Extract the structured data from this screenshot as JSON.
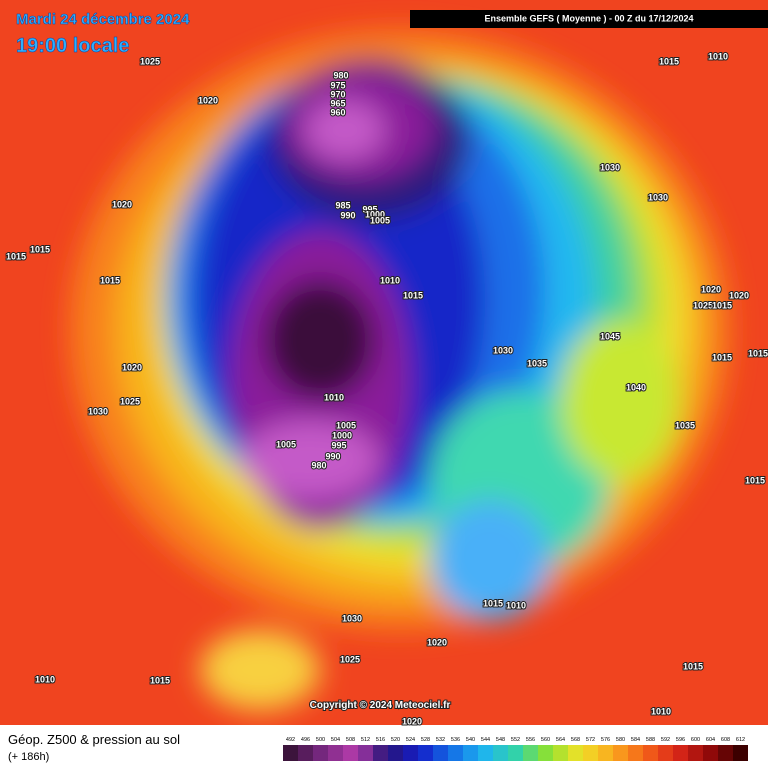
{
  "header": {
    "date": "Mardi 24 décembre 2024",
    "time": "19:00 locale",
    "run": "Ensemble GEFS  ( Moyenne )  -  00 Z du 17/12/2024"
  },
  "isobar_labels": [
    1025,
    1020,
    980,
    975,
    970,
    965,
    960,
    1015,
    1010,
    1030,
    1030,
    1020,
    985,
    995,
    990,
    1000,
    1005,
    1015,
    1015,
    1015,
    1010,
    1015,
    1020,
    1020,
    1025,
    1015,
    1045,
    1030,
    1035,
    1020,
    1015,
    1015,
    1040,
    1025,
    1010,
    1030,
    1035,
    1005,
    1000,
    1005,
    995,
    990,
    980,
    1015,
    1015,
    1010,
    1030,
    1020,
    1025,
    1010,
    1015,
    1015,
    1010,
    1020
  ],
  "colorbar": {
    "ticks": [
      492,
      496,
      500,
      504,
      508,
      512,
      516,
      520,
      524,
      528,
      532,
      536,
      540,
      544,
      548,
      552,
      556,
      560,
      564,
      568,
      572,
      576,
      580,
      584,
      588,
      592,
      596,
      600,
      604,
      608,
      612
    ]
  },
  "footer": {
    "title": "Géop. Z500 & pression au sol",
    "lead": "(+ 186h)",
    "copyright": "Copyright © 2024 Meteociel.fr"
  }
}
